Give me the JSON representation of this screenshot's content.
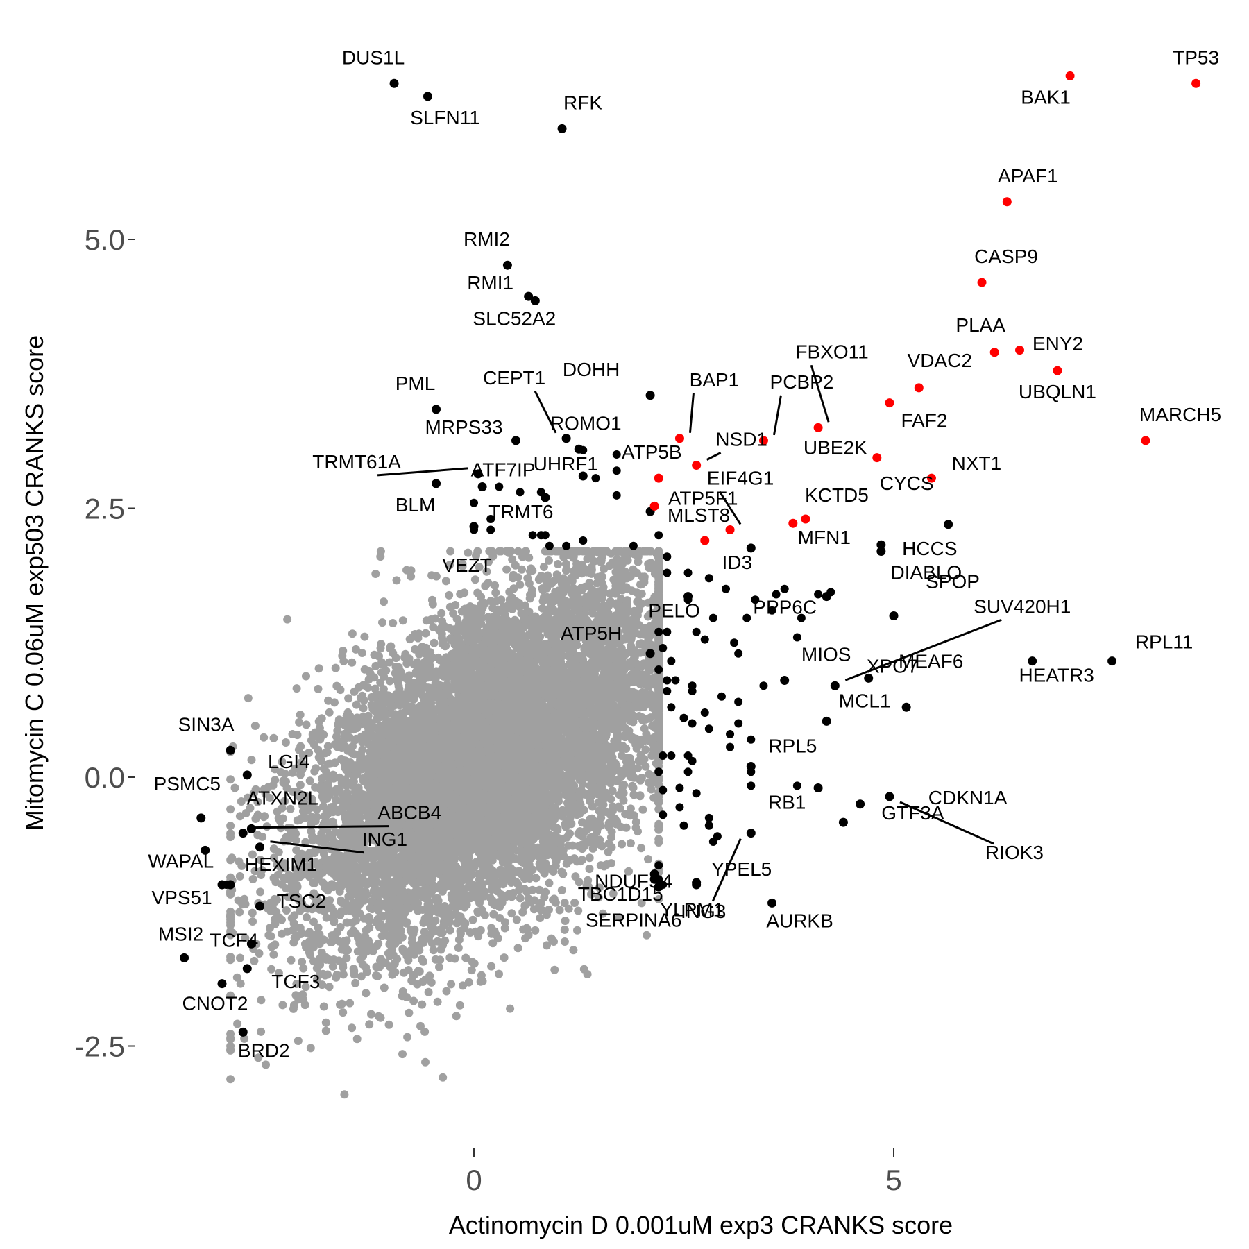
{
  "chart_data": {
    "type": "scatter",
    "title": "",
    "xlabel": "Actinomycin D 0.001uM exp3 CRANKS score",
    "ylabel": "Mitomycin C 0.06uM exp503 CRANKS score",
    "xlim": [
      -4.0,
      9.0
    ],
    "ylim": [
      -3.0,
      6.5
    ],
    "xticks": [
      0,
      5
    ],
    "xtick_labels": [
      "0",
      "5"
    ],
    "yticks": [
      -2.5,
      0.0,
      2.5,
      5.0
    ],
    "ytick_labels": [
      "-2.5",
      "0.0",
      "2.5",
      "5.0"
    ],
    "grid": false,
    "legend": "none",
    "colors": {
      "background": "#ffffff",
      "highlight": "#ff0000",
      "significant": "#000000",
      "bulk": "#a0a0a0"
    },
    "background_cloud": {
      "color": "#a0a0a0",
      "center": [
        0.2,
        0.2
      ],
      "x_spread": 1.25,
      "y_spread": 0.85,
      "n_points": 9000
    },
    "highlighted_genes": [
      {
        "label": "TP53",
        "x": 8.6,
        "y": 6.45
      },
      {
        "label": "BAK1",
        "x": 7.1,
        "y": 6.52
      },
      {
        "label": "APAF1",
        "x": 6.35,
        "y": 5.35
      },
      {
        "label": "CASP9",
        "x": 6.05,
        "y": 4.6
      },
      {
        "label": "PLAA",
        "x": 6.2,
        "y": 3.95
      },
      {
        "label": "ENY2",
        "x": 6.5,
        "y": 3.97
      },
      {
        "label": "UBQLN1",
        "x": 6.95,
        "y": 3.78
      },
      {
        "label": "VDAC2",
        "x": 5.3,
        "y": 3.62
      },
      {
        "label": "FAF2",
        "x": 4.95,
        "y": 3.48
      },
      {
        "label": "MARCH5",
        "x": 8.0,
        "y": 3.13
      },
      {
        "label": "NXT1",
        "x": 5.45,
        "y": 2.78
      },
      {
        "label": "UBE2K",
        "x": 4.8,
        "y": 2.97
      },
      {
        "label": "FBXO11",
        "x": 4.1,
        "y": 3.25
      },
      {
        "label": "PCBP2",
        "x": 3.45,
        "y": 3.13
      },
      {
        "label": "BAP1",
        "x": 2.45,
        "y": 3.15
      },
      {
        "label": "NSD1",
        "x": 2.65,
        "y": 2.9
      },
      {
        "label": "ATP5B",
        "x": 2.2,
        "y": 2.78
      },
      {
        "label": "ATP5F1",
        "x": 2.15,
        "y": 2.52
      },
      {
        "label": "EIF4G1",
        "x": 3.05,
        "y": 2.3
      },
      {
        "label": "KCTD5",
        "x": 3.95,
        "y": 2.4
      },
      {
        "label": "MFN1",
        "x": 3.8,
        "y": 2.36
      },
      {
        "label": "",
        "x": 2.75,
        "y": 2.2
      }
    ],
    "significant_genes": [
      {
        "label": "DUS1L",
        "x": -0.95,
        "y": 6.45
      },
      {
        "label": "SLFN11",
        "x": -0.55,
        "y": 6.33
      },
      {
        "label": "RFK",
        "x": 1.05,
        "y": 6.03
      },
      {
        "label": "RMI2",
        "x": 0.4,
        "y": 4.76
      },
      {
        "label": "RMI1",
        "x": 0.65,
        "y": 4.47
      },
      {
        "label": "SLC52A2",
        "x": 0.73,
        "y": 4.43
      },
      {
        "label": "PML",
        "x": -0.45,
        "y": 3.42
      },
      {
        "label": "MRPS33",
        "x": 0.5,
        "y": 3.13
      },
      {
        "label": "DOHH",
        "x": 2.1,
        "y": 3.55
      },
      {
        "label": "CEPT1",
        "x": 1.1,
        "y": 3.15
      },
      {
        "label": "ROMO1",
        "x": 1.25,
        "y": 3.05
      },
      {
        "label": "TRMT61A",
        "x": 0.05,
        "y": 2.82
      },
      {
        "label": "ATF7IP",
        "x": 0.1,
        "y": 2.7
      },
      {
        "label": "UHRF1",
        "x": 1.3,
        "y": 2.8
      },
      {
        "label": "BLM",
        "x": -0.45,
        "y": 2.73
      },
      {
        "label": "TRMT6",
        "x": 0.85,
        "y": 2.6
      },
      {
        "label": "MLST8",
        "x": 2.1,
        "y": 2.47
      },
      {
        "label": "VEZT",
        "x": 0.0,
        "y": 2.33
      },
      {
        "label": "CYCS",
        "x": 5.65,
        "y": 2.35
      },
      {
        "label": "HCCS",
        "x": 4.85,
        "y": 2.16
      },
      {
        "label": "DIABLO",
        "x": 4.85,
        "y": 2.1
      },
      {
        "label": "ID3",
        "x": 3.3,
        "y": 2.13
      },
      {
        "label": "PPP6C",
        "x": 4.2,
        "y": 1.68
      },
      {
        "label": "PELO",
        "x": 2.55,
        "y": 1.68
      },
      {
        "label": "SPOP",
        "x": 5.0,
        "y": 1.5
      },
      {
        "label": "SUV420H1",
        "x": 4.3,
        "y": 0.85
      },
      {
        "label": "RPL11",
        "x": 7.6,
        "y": 1.08
      },
      {
        "label": "HEATR3",
        "x": 6.65,
        "y": 1.08
      },
      {
        "label": "MIOS",
        "x": 3.7,
        "y": 0.9
      },
      {
        "label": "MEAF6",
        "x": 4.7,
        "y": 0.92
      },
      {
        "label": "ATP5H",
        "x": 2.1,
        "y": 1.15
      },
      {
        "label": "MCL1",
        "x": 5.15,
        "y": 0.65
      },
      {
        "label": "XPO7",
        "x": 4.2,
        "y": 0.52
      },
      {
        "label": "RPL5",
        "x": 3.3,
        "y": 0.1
      },
      {
        "label": "CDKN1A",
        "x": 4.6,
        "y": -0.25
      },
      {
        "label": "RB1",
        "x": 4.1,
        "y": -0.1
      },
      {
        "label": "GTF3A",
        "x": 4.4,
        "y": -0.42
      },
      {
        "label": "YLPM1",
        "x": 3.3,
        "y": -0.52
      },
      {
        "label": "RIOK3",
        "x": 4.95,
        "y": -0.18
      },
      {
        "label": "NDUFS4",
        "x": 2.15,
        "y": -0.9
      },
      {
        "label": "TBC1D15",
        "x": 2.2,
        "y": -1.02
      },
      {
        "label": "YPEL5",
        "x": 2.65,
        "y": -0.98
      },
      {
        "label": "ING3",
        "x": 2.65,
        "y": -1.0
      },
      {
        "label": "AURKB",
        "x": 3.55,
        "y": -1.17
      },
      {
        "label": "SERPINA6",
        "x": 2.15,
        "y": -0.95
      },
      {
        "label": "SIN3A",
        "x": -2.9,
        "y": 0.25
      },
      {
        "label": "LGI4",
        "x": -2.7,
        "y": 0.02
      },
      {
        "label": "PSMC5",
        "x": -3.25,
        "y": -0.38
      },
      {
        "label": "ATXN2L",
        "x": -2.65,
        "y": -0.48
      },
      {
        "label": "ABCB4",
        "x": -2.75,
        "y": -0.52
      },
      {
        "label": "ING1",
        "x": -2.55,
        "y": -0.65
      },
      {
        "label": "WAPAL",
        "x": -3.2,
        "y": -0.68
      },
      {
        "label": "HEXIM1",
        "x": -3.0,
        "y": -1.0
      },
      {
        "label": "VPS51",
        "x": -2.9,
        "y": -1.0
      },
      {
        "label": "TSC2",
        "x": -2.55,
        "y": -1.2
      },
      {
        "label": "TCF4",
        "x": -2.65,
        "y": -1.55
      },
      {
        "label": "MSI2",
        "x": -3.45,
        "y": -1.68
      },
      {
        "label": "TCF3",
        "x": -2.7,
        "y": -1.78
      },
      {
        "label": "CNOT2",
        "x": -3.0,
        "y": -1.92
      },
      {
        "label": "BRD2",
        "x": -2.75,
        "y": -2.37
      }
    ],
    "unlabeled_significant": [
      [
        1.3,
        3.04
      ],
      [
        1.7,
        2.85
      ],
      [
        1.7,
        3.0
      ],
      [
        1.45,
        2.78
      ],
      [
        0.3,
        2.7
      ],
      [
        0.55,
        2.65
      ],
      [
        0.8,
        2.65
      ],
      [
        0.0,
        2.55
      ],
      [
        0.2,
        2.4
      ],
      [
        0.0,
        2.3
      ],
      [
        0.2,
        2.3
      ],
      [
        0.7,
        2.25
      ],
      [
        0.8,
        2.25
      ],
      [
        0.85,
        2.25
      ],
      [
        0.9,
        2.15
      ],
      [
        1.1,
        2.15
      ],
      [
        1.3,
        2.2
      ],
      [
        1.7,
        2.62
      ],
      [
        1.9,
        2.15
      ],
      [
        2.2,
        2.25
      ],
      [
        2.3,
        2.05
      ],
      [
        2.3,
        1.9
      ],
      [
        2.55,
        1.9
      ],
      [
        2.8,
        1.85
      ],
      [
        3.0,
        1.75
      ],
      [
        2.55,
        1.65
      ],
      [
        3.35,
        1.65
      ],
      [
        3.6,
        1.7
      ],
      [
        3.7,
        1.75
      ],
      [
        4.1,
        1.7
      ],
      [
        4.25,
        1.72
      ],
      [
        3.55,
        1.55
      ],
      [
        3.9,
        1.48
      ],
      [
        2.85,
        1.48
      ],
      [
        3.25,
        1.48
      ],
      [
        2.65,
        1.35
      ],
      [
        2.2,
        1.35
      ],
      [
        2.3,
        1.35
      ],
      [
        2.75,
        1.28
      ],
      [
        3.1,
        1.25
      ],
      [
        3.85,
        1.3
      ],
      [
        2.25,
        1.2
      ],
      [
        3.15,
        1.15
      ],
      [
        2.35,
        1.08
      ],
      [
        2.2,
        1.0
      ],
      [
        2.3,
        0.9
      ],
      [
        2.4,
        0.9
      ],
      [
        2.6,
        0.85
      ],
      [
        2.3,
        0.8
      ],
      [
        2.6,
        0.8
      ],
      [
        3.45,
        0.85
      ],
      [
        2.95,
        0.75
      ],
      [
        3.15,
        0.7
      ],
      [
        2.35,
        0.65
      ],
      [
        2.75,
        0.6
      ],
      [
        2.5,
        0.55
      ],
      [
        2.6,
        0.5
      ],
      [
        2.8,
        0.45
      ],
      [
        3.15,
        0.5
      ],
      [
        3.05,
        0.4
      ],
      [
        3.3,
        0.35
      ],
      [
        3.05,
        0.28
      ],
      [
        2.25,
        0.2
      ],
      [
        2.35,
        0.2
      ],
      [
        2.55,
        0.2
      ],
      [
        2.6,
        0.15
      ],
      [
        2.2,
        0.05
      ],
      [
        2.55,
        0.05
      ],
      [
        3.3,
        0.05
      ],
      [
        2.45,
        -0.1
      ],
      [
        2.25,
        -0.12
      ],
      [
        2.65,
        -0.15
      ],
      [
        2.45,
        -0.28
      ],
      [
        2.25,
        -0.35
      ],
      [
        2.8,
        -0.38
      ],
      [
        2.5,
        -0.45
      ],
      [
        2.8,
        -0.45
      ],
      [
        2.9,
        -0.55
      ],
      [
        2.85,
        -0.6
      ],
      [
        3.3,
        -0.08
      ],
      [
        3.85,
        -0.08
      ],
      [
        2.2,
        -0.82
      ],
      [
        2.2,
        -0.95
      ],
      [
        2.25,
        -1.0
      ],
      [
        -2.95,
        -1.0
      ]
    ]
  }
}
